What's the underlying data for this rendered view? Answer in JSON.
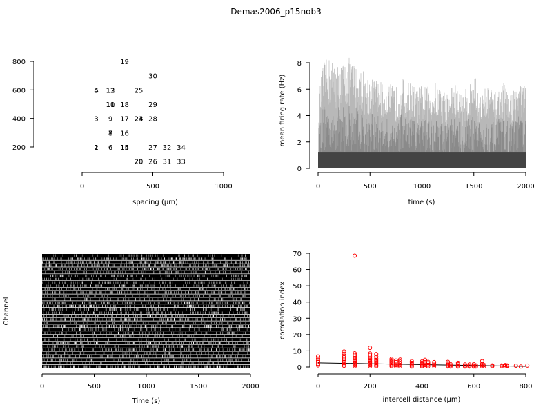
{
  "title": "Demas2006_p15nob3",
  "chart_data": [
    {
      "panel": "electrode-layout",
      "type": "scatter",
      "xlabel": "spacing (µm)",
      "ylabel": "",
      "xlim": [
        0,
        1000
      ],
      "ylim": [
        200,
        800
      ],
      "x_ticks": [
        "0",
        "500",
        "1000"
      ],
      "y_ticks": [
        "200",
        "400",
        "600",
        "800"
      ],
      "points": [
        {
          "label": "19",
          "x": 300,
          "y": 800
        },
        {
          "label": "30",
          "x": 500,
          "y": 700
        },
        {
          "label": "5",
          "x": 100,
          "y": 600
        },
        {
          "label": "4",
          "x": 100,
          "y": 600
        },
        {
          "label": "13",
          "x": 200,
          "y": 600
        },
        {
          "label": "12",
          "x": 200,
          "y": 600
        },
        {
          "label": "25",
          "x": 400,
          "y": 600
        },
        {
          "label": "10",
          "x": 200,
          "y": 500
        },
        {
          "label": "11",
          "x": 200,
          "y": 500
        },
        {
          "label": "18",
          "x": 300,
          "y": 500
        },
        {
          "label": "29",
          "x": 500,
          "y": 500
        },
        {
          "label": "3",
          "x": 100,
          "y": 400
        },
        {
          "label": "9",
          "x": 200,
          "y": 400
        },
        {
          "label": "17",
          "x": 300,
          "y": 400
        },
        {
          "label": "24",
          "x": 400,
          "y": 400
        },
        {
          "label": "23",
          "x": 400,
          "y": 400
        },
        {
          "label": "28",
          "x": 500,
          "y": 400
        },
        {
          "label": "7",
          "x": 200,
          "y": 300
        },
        {
          "label": "8",
          "x": 200,
          "y": 300
        },
        {
          "label": "16",
          "x": 300,
          "y": 300
        },
        {
          "label": "2",
          "x": 100,
          "y": 200
        },
        {
          "label": "1",
          "x": 100,
          "y": 200
        },
        {
          "label": "6",
          "x": 200,
          "y": 200
        },
        {
          "label": "15",
          "x": 300,
          "y": 200
        },
        {
          "label": "14",
          "x": 300,
          "y": 200
        },
        {
          "label": "27",
          "x": 500,
          "y": 200
        },
        {
          "label": "32",
          "x": 600,
          "y": 200
        },
        {
          "label": "34",
          "x": 700,
          "y": 200
        },
        {
          "label": "20",
          "x": 400,
          "y": 100
        },
        {
          "label": "21",
          "x": 400,
          "y": 100
        },
        {
          "label": "26",
          "x": 500,
          "y": 100
        },
        {
          "label": "31",
          "x": 600,
          "y": 100
        },
        {
          "label": "33",
          "x": 700,
          "y": 100
        }
      ]
    },
    {
      "panel": "mean-firing-rate",
      "type": "area",
      "xlabel": "time (s)",
      "ylabel": "mean firing rate (Hz)",
      "xlim": [
        0,
        2000
      ],
      "ylim": [
        0,
        8
      ],
      "x_ticks": [
        "0",
        "500",
        "1000",
        "1500",
        "2000"
      ],
      "y_ticks": [
        "0",
        "2",
        "4",
        "6",
        "8"
      ],
      "envelope": {
        "x": [
          0,
          50,
          100,
          150,
          200,
          250,
          300,
          350,
          400,
          450,
          500,
          550,
          600,
          650,
          700,
          750,
          800,
          850,
          900,
          950,
          1000,
          1050,
          1100,
          1150,
          1200,
          1250,
          1300,
          1350,
          1400,
          1450,
          1500,
          1550,
          1600,
          1650,
          1700,
          1750,
          1800,
          1850,
          1900,
          1950,
          2000
        ],
        "y": [
          5.5,
          8.0,
          8.4,
          8.4,
          7.8,
          8.2,
          8.4,
          8.0,
          7.7,
          7.4,
          7.0,
          6.8,
          6.7,
          6.4,
          6.4,
          6.2,
          7.0,
          6.6,
          6.6,
          6.0,
          6.4,
          6.2,
          6.4,
          6.7,
          6.0,
          5.8,
          6.7,
          6.0,
          5.7,
          6.5,
          7.4,
          5.9,
          6.1,
          6.3,
          5.7,
          6.4,
          6.5,
          5.6,
          6.4,
          6.7,
          6.2
        ]
      },
      "baseline_level": 0.4
    },
    {
      "panel": "raster",
      "type": "heatmap",
      "xlabel": "Time (s)",
      "ylabel": "Channel",
      "xlim": [
        0,
        2000
      ],
      "x_ticks": [
        "0",
        "500",
        "1000",
        "1500",
        "2000"
      ],
      "channels": 34
    },
    {
      "panel": "correlation",
      "type": "scatter",
      "xlabel": "intercell distance (µm)",
      "ylabel": "correlation index",
      "xlim": [
        0,
        800
      ],
      "ylim": [
        0,
        70
      ],
      "x_ticks": [
        "0",
        "200",
        "400",
        "600",
        "800"
      ],
      "y_ticks": [
        "0",
        "10",
        "20",
        "30",
        "40",
        "50",
        "60",
        "70"
      ],
      "point_color": "#ff0000",
      "fit_line": {
        "x": [
          0,
          800
        ],
        "y": [
          2.6,
          0.4
        ]
      },
      "points": [
        {
          "x": 0,
          "y": 1.0
        },
        {
          "x": 0,
          "y": 2.0
        },
        {
          "x": 0,
          "y": 3.0
        },
        {
          "x": 0,
          "y": 4.0
        },
        {
          "x": 0,
          "y": 5.2
        },
        {
          "x": 0,
          "y": 6.5
        },
        {
          "x": 100,
          "y": 0.8
        },
        {
          "x": 100,
          "y": 1.6
        },
        {
          "x": 100,
          "y": 2.4
        },
        {
          "x": 100,
          "y": 3.2
        },
        {
          "x": 100,
          "y": 4.0
        },
        {
          "x": 100,
          "y": 5.0
        },
        {
          "x": 100,
          "y": 6.0
        },
        {
          "x": 100,
          "y": 7.0
        },
        {
          "x": 100,
          "y": 8.2
        },
        {
          "x": 100,
          "y": 9.6
        },
        {
          "x": 141,
          "y": 68.5
        },
        {
          "x": 141,
          "y": 0.5
        },
        {
          "x": 141,
          "y": 1.2
        },
        {
          "x": 141,
          "y": 2.0
        },
        {
          "x": 141,
          "y": 2.8
        },
        {
          "x": 141,
          "y": 3.6
        },
        {
          "x": 141,
          "y": 4.5
        },
        {
          "x": 141,
          "y": 5.5
        },
        {
          "x": 141,
          "y": 6.5
        },
        {
          "x": 141,
          "y": 7.5
        },
        {
          "x": 141,
          "y": 8.5
        },
        {
          "x": 200,
          "y": 0.5
        },
        {
          "x": 200,
          "y": 1.2
        },
        {
          "x": 200,
          "y": 2.0
        },
        {
          "x": 200,
          "y": 2.8
        },
        {
          "x": 200,
          "y": 3.6
        },
        {
          "x": 200,
          "y": 4.5
        },
        {
          "x": 200,
          "y": 5.4
        },
        {
          "x": 200,
          "y": 6.4
        },
        {
          "x": 200,
          "y": 7.4
        },
        {
          "x": 200,
          "y": 8.4
        },
        {
          "x": 200,
          "y": 11.8
        },
        {
          "x": 224,
          "y": 0.4
        },
        {
          "x": 224,
          "y": 1.0
        },
        {
          "x": 224,
          "y": 1.8
        },
        {
          "x": 224,
          "y": 2.6
        },
        {
          "x": 224,
          "y": 3.4
        },
        {
          "x": 224,
          "y": 4.2
        },
        {
          "x": 224,
          "y": 5.2
        },
        {
          "x": 224,
          "y": 6.4
        },
        {
          "x": 224,
          "y": 8.0
        },
        {
          "x": 283,
          "y": 0.4
        },
        {
          "x": 283,
          "y": 1.0
        },
        {
          "x": 283,
          "y": 1.8
        },
        {
          "x": 283,
          "y": 2.6
        },
        {
          "x": 283,
          "y": 3.4
        },
        {
          "x": 283,
          "y": 4.2
        },
        {
          "x": 283,
          "y": 5.0
        },
        {
          "x": 300,
          "y": 0.5
        },
        {
          "x": 300,
          "y": 1.2
        },
        {
          "x": 300,
          "y": 2.0
        },
        {
          "x": 300,
          "y": 3.0
        },
        {
          "x": 300,
          "y": 4.0
        },
        {
          "x": 316,
          "y": 0.4
        },
        {
          "x": 316,
          "y": 1.2
        },
        {
          "x": 316,
          "y": 2.2
        },
        {
          "x": 316,
          "y": 3.4
        },
        {
          "x": 316,
          "y": 4.6
        },
        {
          "x": 361,
          "y": 0.3
        },
        {
          "x": 361,
          "y": 1.0
        },
        {
          "x": 361,
          "y": 1.8
        },
        {
          "x": 361,
          "y": 2.6
        },
        {
          "x": 361,
          "y": 3.6
        },
        {
          "x": 400,
          "y": 0.4
        },
        {
          "x": 400,
          "y": 1.0
        },
        {
          "x": 400,
          "y": 1.8
        },
        {
          "x": 400,
          "y": 2.6
        },
        {
          "x": 400,
          "y": 3.4
        },
        {
          "x": 412,
          "y": 0.4
        },
        {
          "x": 412,
          "y": 1.2
        },
        {
          "x": 412,
          "y": 2.0
        },
        {
          "x": 412,
          "y": 3.0
        },
        {
          "x": 412,
          "y": 4.4
        },
        {
          "x": 424,
          "y": 0.5
        },
        {
          "x": 424,
          "y": 1.4
        },
        {
          "x": 424,
          "y": 2.4
        },
        {
          "x": 424,
          "y": 3.2
        },
        {
          "x": 447,
          "y": 0.4
        },
        {
          "x": 447,
          "y": 1.2
        },
        {
          "x": 447,
          "y": 2.0
        },
        {
          "x": 447,
          "y": 3.0
        },
        {
          "x": 500,
          "y": 0.3
        },
        {
          "x": 500,
          "y": 0.9
        },
        {
          "x": 500,
          "y": 1.6
        },
        {
          "x": 500,
          "y": 2.4
        },
        {
          "x": 500,
          "y": 3.2
        },
        {
          "x": 510,
          "y": 0.3
        },
        {
          "x": 510,
          "y": 1.0
        },
        {
          "x": 510,
          "y": 1.8
        },
        {
          "x": 539,
          "y": 0.3
        },
        {
          "x": 539,
          "y": 1.0
        },
        {
          "x": 539,
          "y": 1.8
        },
        {
          "x": 539,
          "y": 2.6
        },
        {
          "x": 566,
          "y": 0.3
        },
        {
          "x": 566,
          "y": 0.9
        },
        {
          "x": 566,
          "y": 1.6
        },
        {
          "x": 583,
          "y": 0.3
        },
        {
          "x": 583,
          "y": 0.9
        },
        {
          "x": 583,
          "y": 1.6
        },
        {
          "x": 600,
          "y": 0.3
        },
        {
          "x": 600,
          "y": 1.0
        },
        {
          "x": 600,
          "y": 1.8
        },
        {
          "x": 608,
          "y": 0.3
        },
        {
          "x": 608,
          "y": 1.0
        },
        {
          "x": 632,
          "y": 0.4
        },
        {
          "x": 632,
          "y": 1.2
        },
        {
          "x": 632,
          "y": 2.0
        },
        {
          "x": 632,
          "y": 3.6
        },
        {
          "x": 640,
          "y": 0.4
        },
        {
          "x": 640,
          "y": 1.2
        },
        {
          "x": 671,
          "y": 0.5
        },
        {
          "x": 671,
          "y": 1.0
        },
        {
          "x": 707,
          "y": 0.4
        },
        {
          "x": 707,
          "y": 1.0
        },
        {
          "x": 721,
          "y": 0.5
        },
        {
          "x": 721,
          "y": 1.2
        },
        {
          "x": 728,
          "y": 0.6
        },
        {
          "x": 728,
          "y": 1.0
        },
        {
          "x": 762,
          "y": 0.8
        },
        {
          "x": 781,
          "y": 0.3
        },
        {
          "x": 806,
          "y": 0.9
        }
      ]
    }
  ]
}
